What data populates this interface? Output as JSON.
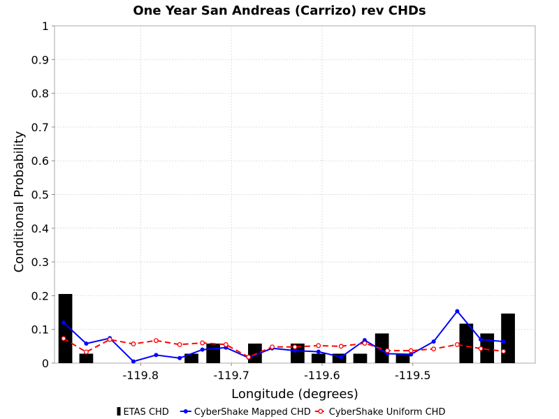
{
  "chart_data": {
    "type": "bar",
    "title": "One Year San Andreas (Carrizo) rev CHDs",
    "xlabel": "Longitude (degrees)",
    "ylabel": "Conditional Probability",
    "xlim": [
      -119.895,
      -119.365
    ],
    "ylim": [
      0,
      1
    ],
    "x_ticks": [
      -119.8,
      -119.7,
      -119.6,
      -119.5
    ],
    "y_ticks": [
      0,
      0.1,
      0.2,
      0.3,
      0.4,
      0.5,
      0.6,
      0.7,
      0.8,
      0.9,
      1
    ],
    "y_tick_labels": [
      "0",
      "0.1",
      "0.2",
      "0.3",
      "0.4",
      "0.5",
      "0.6",
      "0.7",
      "0.8",
      "0.9",
      "1"
    ],
    "grid": true,
    "legend_placement": "bottom",
    "series": [
      {
        "name": "ETAS CHD",
        "kind": "bar",
        "color": "#000000",
        "x": [
          -119.883,
          -119.86,
          -119.837,
          -119.813,
          -119.79,
          -119.767,
          -119.744,
          -119.72,
          -119.697,
          -119.674,
          -119.651,
          -119.627,
          -119.604,
          -119.581,
          -119.558,
          -119.534,
          -119.511,
          -119.488,
          -119.464,
          -119.441,
          -119.418,
          -119.395,
          -119.372
        ],
        "values": [
          0.205,
          0.028,
          0,
          0,
          0,
          0,
          0.028,
          0.058,
          0,
          0.058,
          0,
          0.058,
          0.028,
          0.028,
          0.028,
          0.088,
          0.028,
          0,
          0,
          0.117,
          0.088,
          0.147,
          0
        ]
      },
      {
        "name": "CyberShake Mapped CHD",
        "kind": "line",
        "color": "#0000ff",
        "dashed": false,
        "marker": "filled-circle",
        "x": [
          -119.885,
          -119.86,
          -119.834,
          -119.808,
          -119.783,
          -119.757,
          -119.732,
          -119.706,
          -119.681,
          -119.655,
          -119.63,
          -119.604,
          -119.579,
          -119.553,
          -119.528,
          -119.502,
          -119.477,
          -119.451,
          -119.425,
          -119.4,
          -119.374
        ],
        "y": [
          0.12,
          0.058,
          0.074,
          0.005,
          0.024,
          0.015,
          0.04,
          0.046,
          0.016,
          0.044,
          0.037,
          0.034,
          0.018,
          0.068,
          0.028,
          0.026,
          0.064,
          0.154,
          0.07,
          0.064,
          null
        ]
      },
      {
        "name": "CyberShake Uniform CHD",
        "kind": "line",
        "color": "#ff0000",
        "dashed": true,
        "marker": "open-circle",
        "x": [
          -119.885,
          -119.86,
          -119.834,
          -119.808,
          -119.783,
          -119.757,
          -119.732,
          -119.706,
          -119.681,
          -119.655,
          -119.63,
          -119.604,
          -119.579,
          -119.553,
          -119.528,
          -119.502,
          -119.477,
          -119.451,
          -119.425,
          -119.4
        ],
        "y": [
          0.073,
          0.033,
          0.07,
          0.057,
          0.067,
          0.055,
          0.06,
          0.055,
          0.018,
          0.048,
          0.048,
          0.052,
          0.05,
          0.059,
          0.037,
          0.037,
          0.042,
          0.055,
          0.043,
          0.035
        ]
      }
    ]
  }
}
